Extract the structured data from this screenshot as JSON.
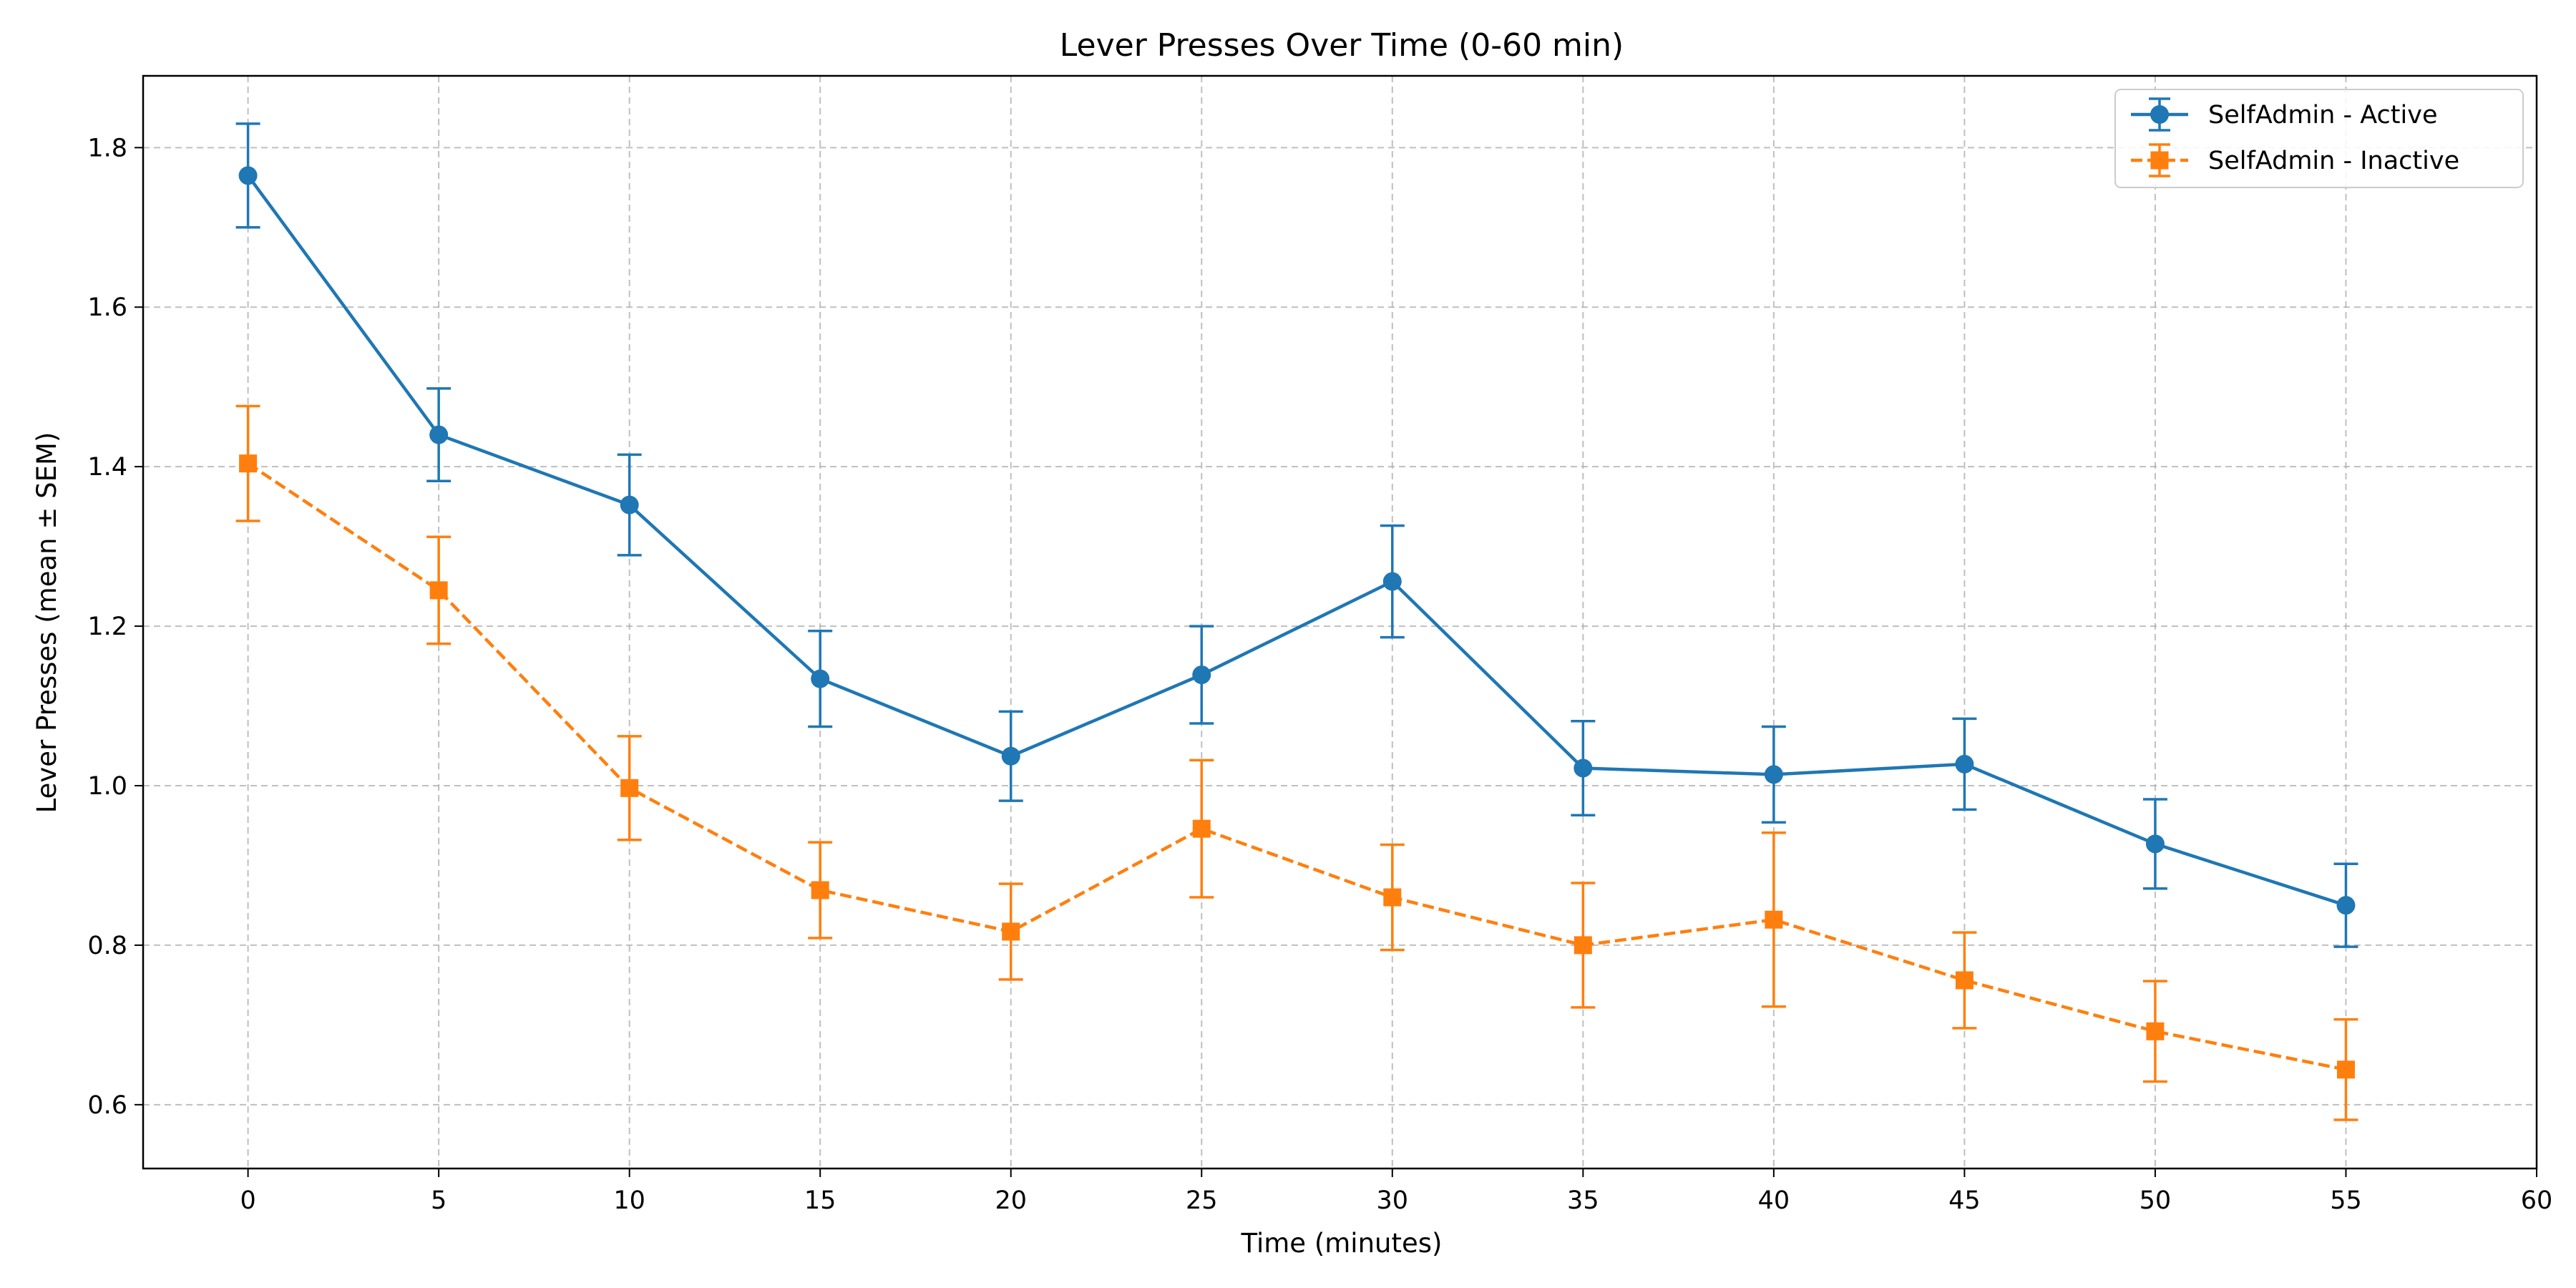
{
  "chart_data": {
    "type": "line",
    "title": "Lever Presses Over Time (0-60 min)",
    "xlabel": "Time (minutes)",
    "ylabel": "Lever Presses (mean ± SEM)",
    "xlim": [
      -2.75,
      60
    ],
    "ylim": [
      0.52,
      1.89
    ],
    "xticks": [
      0,
      5,
      10,
      15,
      20,
      25,
      30,
      35,
      40,
      45,
      50,
      55,
      60
    ],
    "yticks": [
      0.6,
      0.8,
      1.0,
      1.2,
      1.4,
      1.6,
      1.8
    ],
    "xtick_labels": [
      "0",
      "5",
      "10",
      "15",
      "20",
      "25",
      "30",
      "35",
      "40",
      "45",
      "50",
      "55",
      "60"
    ],
    "ytick_labels": [
      "0.6",
      "0.8",
      "1.0",
      "1.2",
      "1.4",
      "1.6",
      "1.8"
    ],
    "grid": true,
    "legend_position": "top-right",
    "x": [
      0,
      5,
      10,
      15,
      20,
      25,
      30,
      35,
      40,
      45,
      50,
      55
    ],
    "series": [
      {
        "name": "SelfAdmin - Active",
        "color": "#1f77b4",
        "line_style": "solid",
        "marker": "circle",
        "values": [
          1.765,
          1.44,
          1.352,
          1.134,
          1.037,
          1.139,
          1.256,
          1.022,
          1.014,
          1.027,
          0.927,
          0.85
        ],
        "sem": [
          0.065,
          0.058,
          0.063,
          0.06,
          0.056,
          0.061,
          0.07,
          0.059,
          0.06,
          0.057,
          0.056,
          0.052
        ]
      },
      {
        "name": "SelfAdmin - Inactive",
        "color": "#ff7f0e",
        "line_style": "dashed",
        "marker": "square",
        "values": [
          1.404,
          1.245,
          0.997,
          0.869,
          0.817,
          0.946,
          0.86,
          0.8,
          0.832,
          0.756,
          0.692,
          0.644
        ],
        "sem": [
          0.072,
          0.067,
          0.065,
          0.06,
          0.06,
          0.086,
          0.066,
          0.078,
          0.109,
          0.06,
          0.063,
          0.063
        ]
      }
    ]
  }
}
